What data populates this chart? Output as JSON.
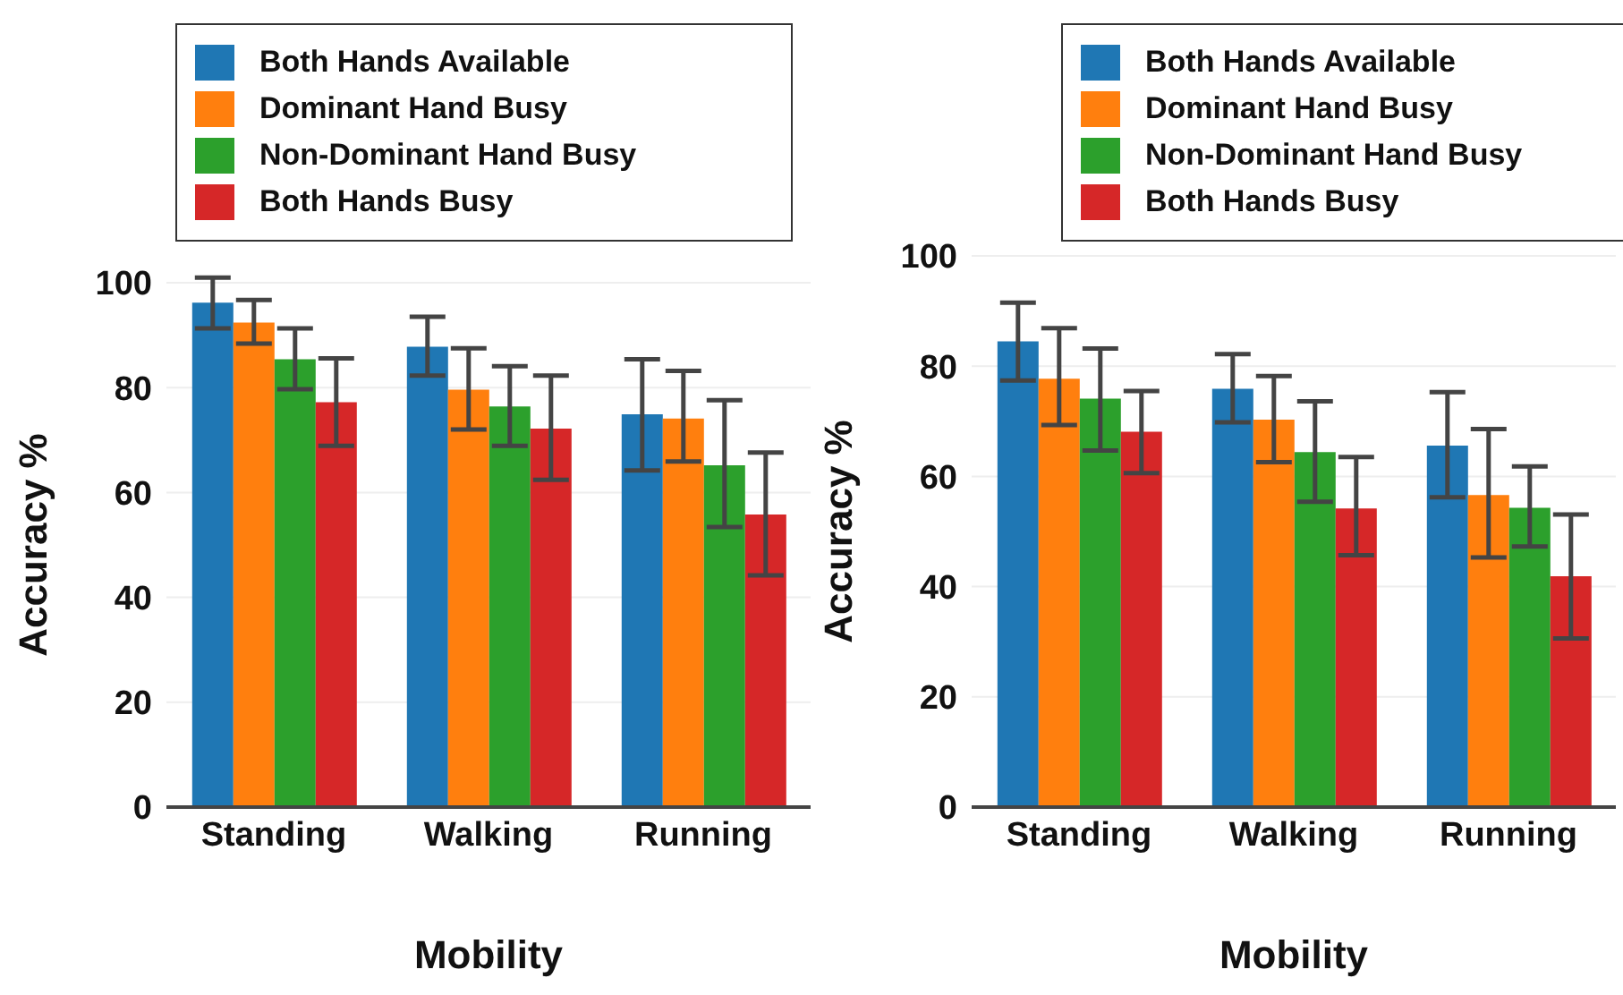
{
  "chart_data": [
    {
      "type": "bar",
      "xlabel": "Mobility",
      "ylabel": "Accuracy %",
      "categories": [
        "Standing",
        "Walking",
        "Running"
      ],
      "ylim": [
        0,
        100
      ],
      "yticks": [
        0,
        20,
        40,
        60,
        80,
        100
      ],
      "grid": "y",
      "legend": "top",
      "series": [
        {
          "name": "Both Hands Available",
          "color": "#1f77b4",
          "values": [
            96.2,
            87.8,
            74.9
          ],
          "errors": [
            [
              91.3,
              101
            ],
            [
              82.3,
              93.5
            ],
            [
              64.2,
              85.4
            ]
          ]
        },
        {
          "name": "Dominant Hand Busy",
          "color": "#ff7f0e",
          "values": [
            92.4,
            79.6,
            74.1
          ],
          "errors": [
            [
              88.4,
              96.7
            ],
            [
              72,
              87.5
            ],
            [
              65.9,
              83.2
            ]
          ]
        },
        {
          "name": "Non-Dominant Hand Busy",
          "color": "#2ca02c",
          "values": [
            85.4,
            76.4,
            65.2
          ],
          "errors": [
            [
              79.7,
              91.3
            ],
            [
              68.9,
              84.1
            ],
            [
              53.4,
              77.6
            ]
          ]
        },
        {
          "name": "Both Hands Busy",
          "color": "#d62728",
          "values": [
            77.2,
            72.2,
            55.8
          ],
          "errors": [
            [
              68.9,
              85.6
            ],
            [
              62.4,
              82.3
            ],
            [
              44.2,
              67.6
            ]
          ]
        }
      ]
    },
    {
      "type": "bar",
      "xlabel": "Mobility",
      "ylabel": "Accuracy %",
      "categories": [
        "Standing",
        "Walking",
        "Running"
      ],
      "ylim": [
        0,
        100
      ],
      "yticks": [
        0,
        20,
        40,
        60,
        80,
        100
      ],
      "grid": "y",
      "legend": "top",
      "series": [
        {
          "name": "Both Hands Available",
          "color": "#1f77b4",
          "values": [
            84.5,
            75.9,
            65.6
          ],
          "errors": [
            [
              77.4,
              91.5
            ],
            [
              69.8,
              82.2
            ],
            [
              56.2,
              75.3
            ]
          ]
        },
        {
          "name": "Dominant Hand Busy",
          "color": "#ff7f0e",
          "values": [
            77.7,
            70.3,
            56.6
          ],
          "errors": [
            [
              69.3,
              86.9
            ],
            [
              62.6,
              78.2
            ],
            [
              45.3,
              68.6
            ]
          ]
        },
        {
          "name": "Non-Dominant Hand Busy",
          "color": "#2ca02c",
          "values": [
            74.1,
            64.4,
            54.3
          ],
          "errors": [
            [
              64.7,
              83.2
            ],
            [
              55.4,
              73.6
            ],
            [
              47.3,
              61.8
            ]
          ]
        },
        {
          "name": "Both Hands Busy",
          "color": "#d62728",
          "values": [
            68.1,
            54.2,
            41.9
          ],
          "errors": [
            [
              60.6,
              75.5
            ],
            [
              45.7,
              63.5
            ],
            [
              30.6,
              53.1
            ]
          ]
        }
      ]
    }
  ]
}
